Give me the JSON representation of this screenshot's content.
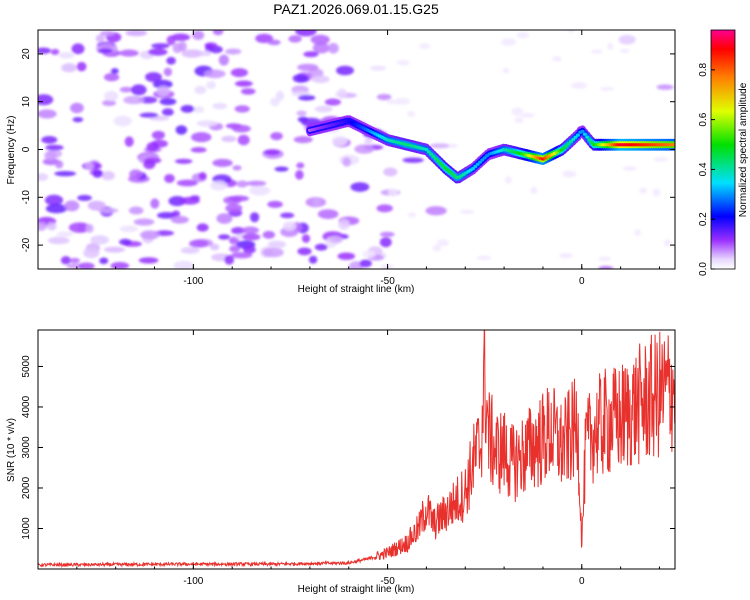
{
  "figure": {
    "title": "PAZ1.2026.069.01.15.G25"
  },
  "chart_data": [
    {
      "type": "heatmap",
      "xlabel": "Height of straight line (km)",
      "ylabel": "Frequency (Hz)",
      "xlim": [
        -140,
        24
      ],
      "ylim": [
        -25,
        25
      ],
      "xticks": [
        -100,
        -50,
        0
      ],
      "yticks": [
        -20,
        -10,
        0,
        10,
        20
      ],
      "colorbar": {
        "label": "Normalized spectral amplitude",
        "range": [
          0,
          0.96
        ],
        "ticks": [
          "0.0",
          "0.2",
          "0.4",
          "0.6",
          "0.8"
        ]
      },
      "ridge": {
        "name": "",
        "x": [
          -70,
          -65,
          -60,
          -55,
          -50,
          -45,
          -40,
          -35,
          -32,
          -28,
          -24,
          -20,
          -15,
          -10,
          -5,
          -1,
          0,
          3,
          10,
          24
        ],
        "y": [
          4,
          5,
          6,
          4,
          2,
          1,
          0,
          -4,
          -6,
          -4,
          -1,
          0,
          -1,
          -2,
          0,
          3,
          4,
          1,
          1,
          1
        ],
        "amplitude": [
          0.1,
          0.15,
          0.2,
          0.3,
          0.4,
          0.45,
          0.4,
          0.5,
          0.45,
          0.35,
          0.3,
          0.4,
          0.55,
          0.9,
          0.5,
          0.35,
          0.3,
          0.5,
          0.95,
          0.8
        ]
      },
      "grid": false
    },
    {
      "type": "line",
      "xlabel": "Height of straight line (km)",
      "ylabel": "SNR (10 * v/v)",
      "xlim": [
        -140,
        24
      ],
      "ylim": [
        0,
        5900
      ],
      "xticks": [
        -100,
        -50,
        0
      ],
      "yticks": [
        1000,
        2000,
        3000,
        4000,
        5000
      ],
      "series": [
        {
          "name": "",
          "color": "#e8302c",
          "x": [
            -140,
            -120,
            -100,
            -80,
            -60,
            -55,
            -50,
            -45,
            -42,
            -40,
            -38,
            -35,
            -32,
            -30,
            -28,
            -26,
            -25,
            -24,
            -22,
            -20,
            -18,
            -15,
            -12,
            -10,
            -8,
            -5,
            -3,
            -1,
            0,
            1,
            3,
            6,
            10,
            14,
            18,
            22,
            24
          ],
          "values": [
            100,
            110,
            120,
            120,
            150,
            250,
            400,
            650,
            1000,
            1500,
            1100,
            1400,
            1700,
            1900,
            2600,
            3100,
            4800,
            3300,
            2900,
            2900,
            2600,
            2800,
            3100,
            3200,
            3400,
            3000,
            3300,
            3500,
            600,
            3000,
            3400,
            3600,
            3700,
            4000,
            4200,
            4400,
            4600
          ]
        }
      ],
      "grid": false
    }
  ]
}
